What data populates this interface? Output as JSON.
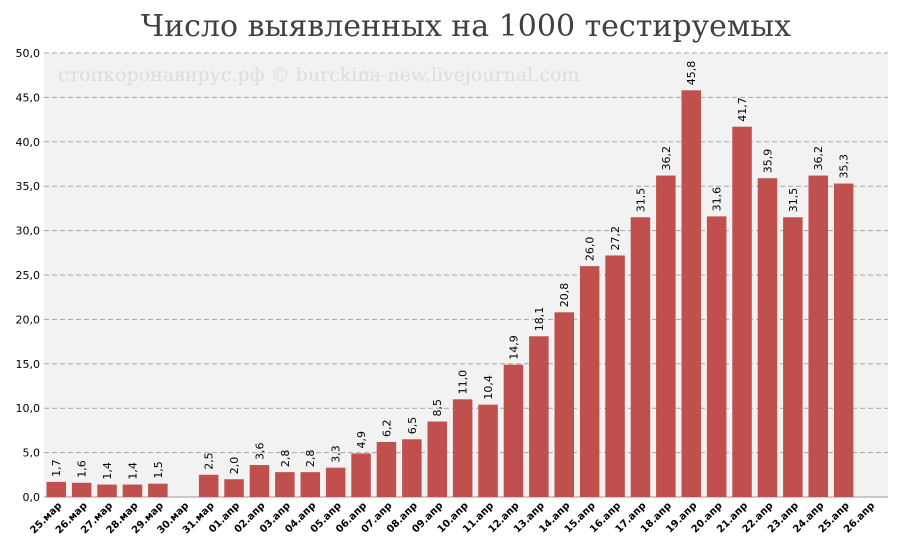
{
  "chart_data": {
    "type": "bar",
    "title": "Число выявленных на 1000 тестируемых",
    "watermark": "стопкоронавирус.рф © burckina-new.livejournal.com",
    "xlabel": "",
    "ylabel": "",
    "ylim": [
      0,
      50
    ],
    "yticks": [
      "0,0",
      "5,0",
      "10,0",
      "15,0",
      "20,0",
      "25,0",
      "30,0",
      "35,0",
      "40,0",
      "45,0",
      "50,0"
    ],
    "grid": true,
    "legend": "none",
    "bar_color": "#c0504d",
    "categories": [
      "25.мар",
      "26.мар",
      "27.мар",
      "28.мар",
      "29.мар",
      "30.мар",
      "31.мар",
      "01.апр",
      "02.апр",
      "03.апр",
      "04.апр",
      "05.апр",
      "06.апр",
      "07.апр",
      "08.апр",
      "09.апр",
      "10.апр",
      "11.апр",
      "12.апр",
      "13.апр",
      "14.апр",
      "15.апр",
      "16.апр",
      "17.апр",
      "18.апр",
      "19.апр",
      "20.апр",
      "21.апр",
      "22.апр",
      "23.апр",
      "24.апр",
      "25.апр",
      "26.апр"
    ],
    "values": [
      1.7,
      1.6,
      1.4,
      1.4,
      1.5,
      null,
      2.5,
      2.0,
      3.6,
      2.8,
      2.8,
      3.3,
      4.9,
      6.2,
      6.5,
      8.5,
      11.0,
      10.4,
      14.9,
      18.1,
      20.8,
      26.0,
      27.2,
      31.5,
      36.2,
      45.8,
      31.6,
      41.7,
      35.9,
      31.5,
      36.2,
      35.3,
      null
    ],
    "labels": [
      "1,7",
      "1,6",
      "1,4",
      "1,4",
      "1,5",
      "",
      "2,5",
      "2,0",
      "3,6",
      "2,8",
      "2,8",
      "3,3",
      "4,9",
      "6,2",
      "6,5",
      "8,5",
      "11,0",
      "10,4",
      "14,9",
      "18,1",
      "20,8",
      "26,0",
      "27,2",
      "31,5",
      "36,2",
      "45,8",
      "31,6",
      "41,7",
      "35,9",
      "31,5",
      "36,2",
      "35,3",
      ""
    ]
  }
}
